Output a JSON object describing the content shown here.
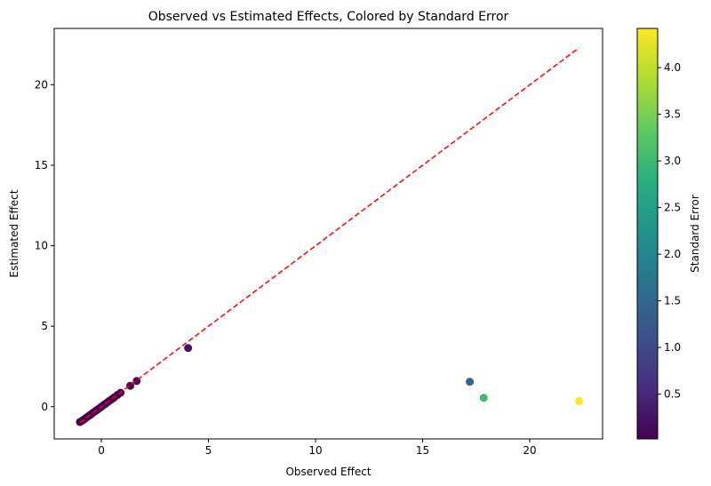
{
  "chart_data": {
    "type": "scatter",
    "title": "Observed vs Estimated Effects, Colored by Standard Error",
    "xlabel": "Observed Effect",
    "ylabel": "Estimated Effect",
    "xlim": [
      -2.2,
      23.4
    ],
    "ylim": [
      -2.0,
      23.5
    ],
    "xticks": [
      0,
      5,
      10,
      15,
      20
    ],
    "yticks": [
      0,
      5,
      10,
      15,
      20
    ],
    "grid": false,
    "reference_line": {
      "from": [
        -1.0,
        -1.0
      ],
      "to": [
        22.3,
        22.3
      ],
      "color": "#ff0000",
      "style": "dashed"
    },
    "colorbar": {
      "label": "Standard Error",
      "range": [
        0.02,
        4.42
      ],
      "ticks": [
        0.5,
        1.0,
        1.5,
        2.0,
        2.5,
        3.0,
        3.5,
        4.0
      ],
      "tick_labels": [
        "0.5",
        "1.0",
        "1.5",
        "2.0",
        "2.5",
        "3.0",
        "3.5",
        "4.0"
      ],
      "colormap": "viridis"
    },
    "points": [
      {
        "x": -1.0,
        "y": -0.95,
        "se": 0.05
      },
      {
        "x": -0.9,
        "y": -0.87,
        "se": 0.05
      },
      {
        "x": -0.8,
        "y": -0.78,
        "se": 0.05
      },
      {
        "x": -0.7,
        "y": -0.68,
        "se": 0.05
      },
      {
        "x": -0.6,
        "y": -0.58,
        "se": 0.05
      },
      {
        "x": -0.5,
        "y": -0.49,
        "se": 0.05
      },
      {
        "x": -0.4,
        "y": -0.39,
        "se": 0.05
      },
      {
        "x": -0.3,
        "y": -0.29,
        "se": 0.05
      },
      {
        "x": -0.2,
        "y": -0.2,
        "se": 0.05
      },
      {
        "x": -0.1,
        "y": -0.1,
        "se": 0.05
      },
      {
        "x": 0.0,
        "y": 0.0,
        "se": 0.05
      },
      {
        "x": 0.1,
        "y": 0.1,
        "se": 0.05
      },
      {
        "x": 0.2,
        "y": 0.19,
        "se": 0.05
      },
      {
        "x": 0.3,
        "y": 0.29,
        "se": 0.05
      },
      {
        "x": 0.4,
        "y": 0.39,
        "se": 0.05
      },
      {
        "x": 0.5,
        "y": 0.48,
        "se": 0.05
      },
      {
        "x": 0.6,
        "y": 0.58,
        "se": 0.05
      },
      {
        "x": 0.75,
        "y": 0.73,
        "se": 0.06
      },
      {
        "x": 0.9,
        "y": 0.87,
        "se": 0.06
      },
      {
        "x": 1.35,
        "y": 1.3,
        "se": 0.08
      },
      {
        "x": 1.65,
        "y": 1.6,
        "se": 0.1
      },
      {
        "x": 4.05,
        "y": 3.65,
        "se": 0.25
      },
      {
        "x": 17.2,
        "y": 1.55,
        "se": 1.4
      },
      {
        "x": 17.85,
        "y": 0.55,
        "se": 3.0
      },
      {
        "x": 22.3,
        "y": 0.35,
        "se": 4.42
      }
    ]
  }
}
